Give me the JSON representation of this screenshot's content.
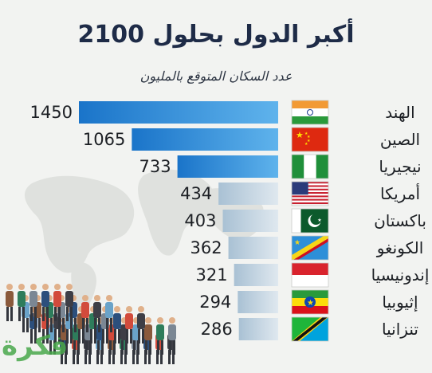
{
  "title": "أكبر الدول بحلول 2100",
  "subtitle": "عدد السكان المتوقع بالمليون",
  "logo_text": "فكرة",
  "colors": {
    "title": "#1e2b47",
    "bar_top_dark": "#1a74c9",
    "bar_top_light": "#5fb3ec",
    "bar_low_dark": "#a9c1d4",
    "bar_low_light": "#dfe8ef"
  },
  "chart_data": {
    "type": "bar",
    "orientation": "horizontal",
    "title": "أكبر الدول بحلول 2100",
    "subtitle": "عدد السكان المتوقع بالمليون",
    "categories": [
      "الهند",
      "الصين",
      "نيجيريا",
      "أمريكا",
      "باكستان",
      "الكونغو",
      "إندونيسيا",
      "إثيوبيا",
      "تنزانيا"
    ],
    "flags": [
      "india-flag",
      "china-flag",
      "nigeria-flag",
      "usa-flag",
      "pakistan-flag",
      "dr-congo-flag",
      "indonesia-flag",
      "ethiopia-flag",
      "tanzania-flag"
    ],
    "values": [
      1450,
      1065,
      733,
      434,
      403,
      362,
      321,
      294,
      286
    ],
    "value_labels": [
      "1450",
      "1065",
      "733",
      "434",
      "403",
      "362",
      "321",
      "294",
      "286"
    ],
    "xlim": [
      0,
      1450
    ],
    "grid": false,
    "legend": "none"
  }
}
